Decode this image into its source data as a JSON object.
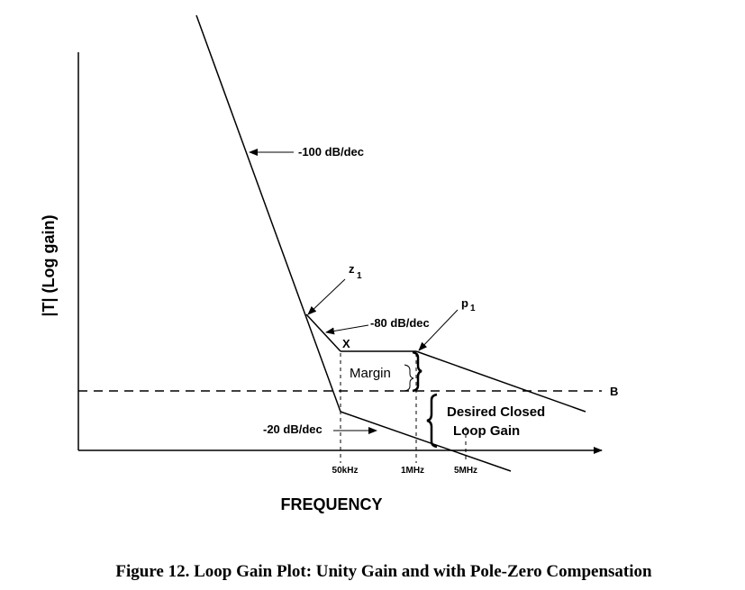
{
  "diagram": {
    "y_axis_label": "|T| (Log gain)",
    "x_axis_label": "FREQUENCY",
    "slope_labels": {
      "main": "-100 dB/dec",
      "mid": "-80 dB/dec",
      "low": "-20 dB/dec"
    },
    "point_labels": {
      "zero": "z",
      "zero_sub": "1",
      "pole": "p",
      "pole_sub": "1",
      "marker": "X",
      "level": "B"
    },
    "frequency_ticks": [
      "50kHz",
      "1MHz",
      "5MHz"
    ],
    "margin_label": "Margin",
    "closed_loop_label_line1": "Desired Closed",
    "closed_loop_label_line2": "Loop Gain"
  },
  "caption": "Figure 12.  Loop Gain Plot: Unity Gain and with Pole-Zero Compensation"
}
